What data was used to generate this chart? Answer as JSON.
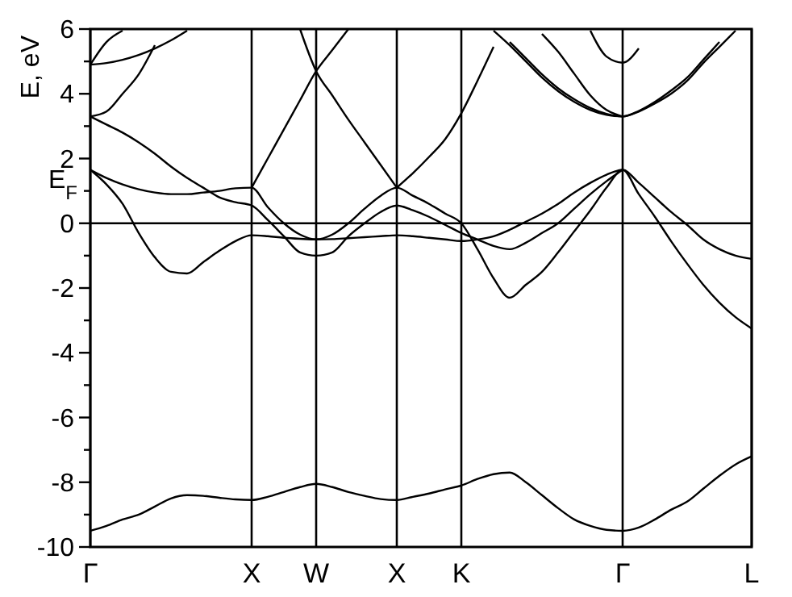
{
  "chart_data": {
    "type": "line",
    "ylabel": "E, eV",
    "categories": [
      "Γ",
      null,
      null,
      null,
      null,
      null,
      null,
      null,
      null,
      null,
      "X",
      null,
      null,
      null,
      "W",
      null,
      null,
      null,
      null,
      "X",
      null,
      null,
      null,
      "K",
      null,
      null,
      null,
      null,
      null,
      null,
      null,
      null,
      null,
      "Γ",
      null,
      null,
      null,
      null,
      null,
      null,
      null,
      "L"
    ],
    "ylim": [
      -10,
      6
    ],
    "yticks": [
      -10,
      {
        "value": -9,
        "label": null
      },
      -8,
      {
        "value": -7,
        "label": null
      },
      -6,
      {
        "value": -5,
        "label": null
      },
      -4,
      {
        "value": -3,
        "label": null
      },
      -2,
      {
        "value": -1,
        "label": null
      },
      0,
      {
        "value": 1,
        "label": null
      },
      2,
      {
        "value": 3,
        "label": null
      },
      4,
      {
        "value": 5,
        "label": null
      },
      6
    ],
    "grid": "x",
    "marker": "none",
    "line_style": "solid",
    "ref_lines": [
      {
        "axis": "y",
        "value": 0,
        "label": "E$_{F}$"
      }
    ],
    "series": [
      {
        "color": "#000000",
        "values": [
          -9.5,
          -9.35,
          -9.15,
          -9.0,
          -8.75,
          -8.5,
          -8.4,
          -8.42,
          -8.48,
          -8.53,
          -8.55,
          -8.45,
          -8.3,
          -8.15,
          -8.05,
          -8.15,
          -8.3,
          -8.42,
          -8.52,
          -8.55,
          -8.45,
          -8.35,
          -8.22,
          -8.1,
          -7.9,
          -7.75,
          -7.7,
          -8.0,
          -8.4,
          -8.8,
          -9.15,
          -9.35,
          -9.47,
          -9.5,
          -9.4,
          -9.15,
          -8.85,
          -8.6,
          -8.2,
          -7.8,
          -7.45,
          -7.2
        ]
      },
      {
        "color": "#000000",
        "values": [
          1.65,
          1.2,
          0.6,
          -0.3,
          -1.05,
          -1.5,
          -1.55,
          -1.2,
          -0.85,
          -0.55,
          -0.37,
          -0.4,
          -0.45,
          -0.48,
          -0.5,
          -0.49,
          -0.46,
          -0.43,
          -0.4,
          -0.37,
          -0.4,
          -0.45,
          -0.5,
          -0.55,
          -0.5,
          -0.4,
          -0.2,
          0.05,
          0.3,
          0.6,
          0.95,
          1.25,
          1.5,
          1.65,
          1.25,
          0.8,
          0.35,
          -0.05,
          -0.5,
          -0.8,
          -1.0,
          -1.1
        ]
      },
      {
        "color": "#000000",
        "values": [
          1.65,
          1.4,
          1.2,
          1.05,
          0.95,
          0.9,
          0.9,
          0.95,
          1.0,
          1.08,
          1.1,
          0.5,
          0.0,
          -0.35,
          -0.5,
          -0.35,
          0.0,
          0.45,
          0.85,
          1.1,
          0.85,
          0.6,
          0.3,
          0.0,
          -0.8,
          -1.7,
          -2.3,
          -1.9,
          -1.5,
          -0.9,
          -0.25,
          0.4,
          1.1,
          1.65,
          0.9,
          0.2,
          -0.55,
          -1.25,
          -1.9,
          -2.45,
          -2.9,
          -3.25
        ]
      },
      {
        "color": "#000000",
        "values": [
          3.3,
          3.05,
          2.8,
          2.5,
          2.15,
          1.75,
          1.4,
          1.1,
          0.8,
          0.65,
          0.55,
          0.1,
          -0.4,
          -0.9,
          -1.0,
          -0.9,
          -0.4,
          0.0,
          0.35,
          0.55,
          0.4,
          0.2,
          -0.05,
          -0.3,
          -0.5,
          -0.7,
          -0.8,
          -0.6,
          -0.3,
          0.0,
          0.45,
          0.9,
          1.3,
          1.65,
          null,
          null,
          null,
          null,
          null,
          null,
          null,
          null
        ]
      },
      {
        "color": "#000000",
        "values": [
          3.3,
          3.45,
          4.0,
          4.6,
          5.5,
          null,
          null,
          null,
          null,
          null,
          null,
          null,
          null,
          null,
          null,
          null,
          null,
          null,
          null,
          null,
          null,
          null,
          null,
          null,
          null,
          null,
          null,
          null,
          null,
          null,
          null,
          null,
          null,
          null,
          null,
          null,
          null,
          null,
          null,
          null,
          null,
          null
        ]
      },
      {
        "color": "#000000",
        "values": [
          4.9,
          4.95,
          5.05,
          5.2,
          5.4,
          5.65,
          5.95,
          null,
          null,
          null,
          null,
          null,
          null,
          null,
          null,
          null,
          null,
          null,
          null,
          null,
          null,
          null,
          null,
          null,
          null,
          null,
          null,
          null,
          null,
          null,
          null,
          null,
          null,
          null,
          null,
          null,
          null,
          null,
          null,
          null,
          null,
          null
        ]
      },
      {
        "color": "#000000",
        "values": [
          4.9,
          5.6,
          5.95,
          null,
          null,
          null,
          null,
          null,
          null,
          null,
          null,
          null,
          null,
          null,
          null,
          null,
          null,
          null,
          null,
          null,
          null,
          null,
          null,
          null,
          null,
          null,
          null,
          null,
          null,
          null,
          null,
          null,
          null,
          null,
          null,
          null,
          null,
          null,
          null,
          null,
          null,
          null
        ]
      },
      {
        "color": "#000000",
        "values": [
          null,
          null,
          null,
          null,
          null,
          null,
          null,
          null,
          null,
          null,
          1.1,
          2.0,
          2.9,
          3.8,
          4.7,
          5.35,
          6.0,
          null,
          null,
          null,
          null,
          null,
          null,
          null,
          null,
          null,
          null,
          null,
          null,
          null,
          null,
          null,
          null,
          null,
          null,
          null,
          null,
          null,
          null,
          null,
          null,
          null
        ]
      },
      {
        "color": "#000000",
        "values": [
          null,
          null,
          null,
          null,
          null,
          null,
          null,
          null,
          null,
          null,
          null,
          null,
          null,
          6.0,
          4.7,
          3.95,
          3.2,
          2.5,
          1.8,
          1.1,
          null,
          null,
          null,
          null,
          null,
          null,
          null,
          null,
          null,
          null,
          null,
          null,
          null,
          null,
          null,
          null,
          null,
          null,
          null,
          null,
          null,
          null
        ]
      },
      {
        "color": "#000000",
        "values": [
          null,
          null,
          null,
          null,
          null,
          null,
          null,
          null,
          null,
          null,
          null,
          null,
          null,
          null,
          null,
          null,
          null,
          null,
          null,
          1.1,
          1.55,
          2.05,
          2.6,
          3.4,
          4.4,
          5.45,
          null,
          null,
          null,
          null,
          null,
          null,
          null,
          null,
          null,
          null,
          null,
          null,
          null,
          null,
          null,
          null
        ]
      },
      {
        "color": "#000000",
        "values": [
          null,
          null,
          null,
          null,
          null,
          null,
          null,
          null,
          null,
          null,
          null,
          null,
          null,
          null,
          null,
          null,
          null,
          null,
          null,
          null,
          null,
          null,
          null,
          null,
          null,
          5.95,
          5.5,
          5.0,
          4.5,
          4.08,
          3.75,
          3.5,
          3.35,
          3.3,
          3.45,
          3.7,
          4.0,
          4.4,
          4.95,
          5.45,
          5.95,
          null
        ]
      },
      {
        "color": "#000000",
        "values": [
          null,
          null,
          null,
          null,
          null,
          null,
          null,
          null,
          null,
          null,
          null,
          null,
          null,
          null,
          null,
          null,
          null,
          null,
          null,
          null,
          null,
          null,
          null,
          null,
          null,
          null,
          5.6,
          5.1,
          4.6,
          4.17,
          3.83,
          3.56,
          3.38,
          3.3,
          3.47,
          3.75,
          4.1,
          4.5,
          5.05,
          5.6,
          null,
          null
        ]
      },
      {
        "color": "#000000",
        "values": [
          null,
          null,
          null,
          null,
          null,
          null,
          null,
          null,
          null,
          null,
          null,
          null,
          null,
          null,
          null,
          null,
          null,
          null,
          null,
          null,
          null,
          null,
          null,
          null,
          null,
          null,
          null,
          null,
          5.85,
          5.3,
          4.62,
          3.95,
          3.5,
          3.3,
          null,
          null,
          null,
          null,
          null,
          null,
          null,
          null
        ]
      },
      {
        "color": "#000000",
        "values": [
          null,
          null,
          null,
          null,
          null,
          null,
          null,
          null,
          null,
          null,
          null,
          null,
          null,
          null,
          null,
          null,
          null,
          null,
          null,
          null,
          null,
          null,
          null,
          null,
          null,
          null,
          null,
          null,
          null,
          null,
          null,
          5.95,
          5.15,
          4.96,
          5.4,
          null,
          null,
          null,
          null,
          null,
          null,
          null
        ]
      }
    ]
  }
}
